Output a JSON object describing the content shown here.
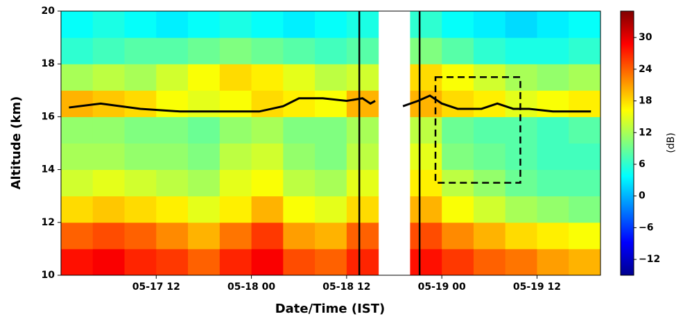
{
  "chart_data": {
    "type": "heatmap",
    "xlabel": "Date/Time (IST)",
    "ylabel": "Altitude (km)",
    "colorbar_label": "(dB)",
    "xlim": [
      0,
      68
    ],
    "ylim": [
      10,
      20
    ],
    "xticks": [
      {
        "value": 12,
        "label": "05-17 12"
      },
      {
        "value": 24,
        "label": "05-18 00"
      },
      {
        "value": 36,
        "label": "05-18 12"
      },
      {
        "value": 48,
        "label": "05-19 00"
      },
      {
        "value": 60,
        "label": "05-19 12"
      }
    ],
    "yticks": [
      10,
      12,
      14,
      16,
      18,
      20
    ],
    "clim": [
      -15,
      35
    ],
    "cticks": [
      {
        "value": -12,
        "label": "−12"
      },
      {
        "value": -6,
        "label": "−6"
      },
      0,
      6,
      12,
      18,
      24,
      30
    ],
    "colormap": "jet",
    "z": [
      [
        28,
        29,
        27,
        26,
        24,
        27,
        29,
        25,
        24,
        27,
        null,
        28,
        26,
        24,
        23,
        21,
        20
      ],
      [
        24,
        25,
        24,
        22,
        20,
        23,
        26,
        21,
        20,
        24,
        null,
        25,
        22,
        20,
        18,
        17,
        16
      ],
      [
        18,
        19,
        18,
        17,
        15,
        17,
        20,
        16,
        15,
        18,
        null,
        20,
        16,
        14,
        12,
        11,
        10
      ],
      [
        14,
        15,
        14,
        13,
        12,
        15,
        16,
        13,
        12,
        15,
        null,
        17,
        13,
        11,
        9,
        8,
        8
      ],
      [
        12,
        12,
        11,
        11,
        10,
        13,
        14,
        11,
        10,
        13,
        null,
        15,
        10,
        9,
        8,
        7,
        7
      ],
      [
        11,
        11,
        10,
        10,
        9,
        11,
        12,
        10,
        10,
        12,
        null,
        13,
        9,
        8,
        8,
        7,
        8
      ],
      [
        20,
        19,
        18,
        16,
        15,
        16,
        18,
        17,
        16,
        20,
        null,
        20,
        18,
        17,
        15,
        16,
        17
      ],
      [
        12,
        13,
        12,
        14,
        16,
        18,
        17,
        15,
        13,
        14,
        null,
        18,
        16,
        14,
        12,
        11,
        12
      ],
      [
        6,
        7,
        8,
        8,
        9,
        10,
        9,
        8,
        7,
        8,
        null,
        10,
        8,
        6,
        5,
        5,
        6
      ],
      [
        4,
        5,
        4,
        3,
        4,
        5,
        4,
        3,
        4,
        5,
        null,
        6,
        4,
        3,
        2,
        3,
        4
      ]
    ],
    "line": {
      "color": "#000000",
      "x": [
        1,
        5,
        10,
        15,
        20,
        25,
        28,
        30,
        33,
        36,
        38,
        39,
        39.6,
        null,
        43.1,
        45,
        46.5,
        48,
        50,
        53,
        55,
        57,
        59,
        62,
        65,
        66.8
      ],
      "y": [
        16.35,
        16.5,
        16.3,
        16.2,
        16.2,
        16.2,
        16.4,
        16.7,
        16.7,
        16.6,
        16.7,
        16.5,
        16.6,
        null,
        16.4,
        16.6,
        16.8,
        16.5,
        16.3,
        16.3,
        16.5,
        16.3,
        16.3,
        16.2,
        16.2,
        16.2
      ]
    },
    "vlines": [
      37.6,
      45.2
    ],
    "box": {
      "x": [
        47.2,
        57.9
      ],
      "y": [
        13.5,
        17.5
      ]
    }
  }
}
